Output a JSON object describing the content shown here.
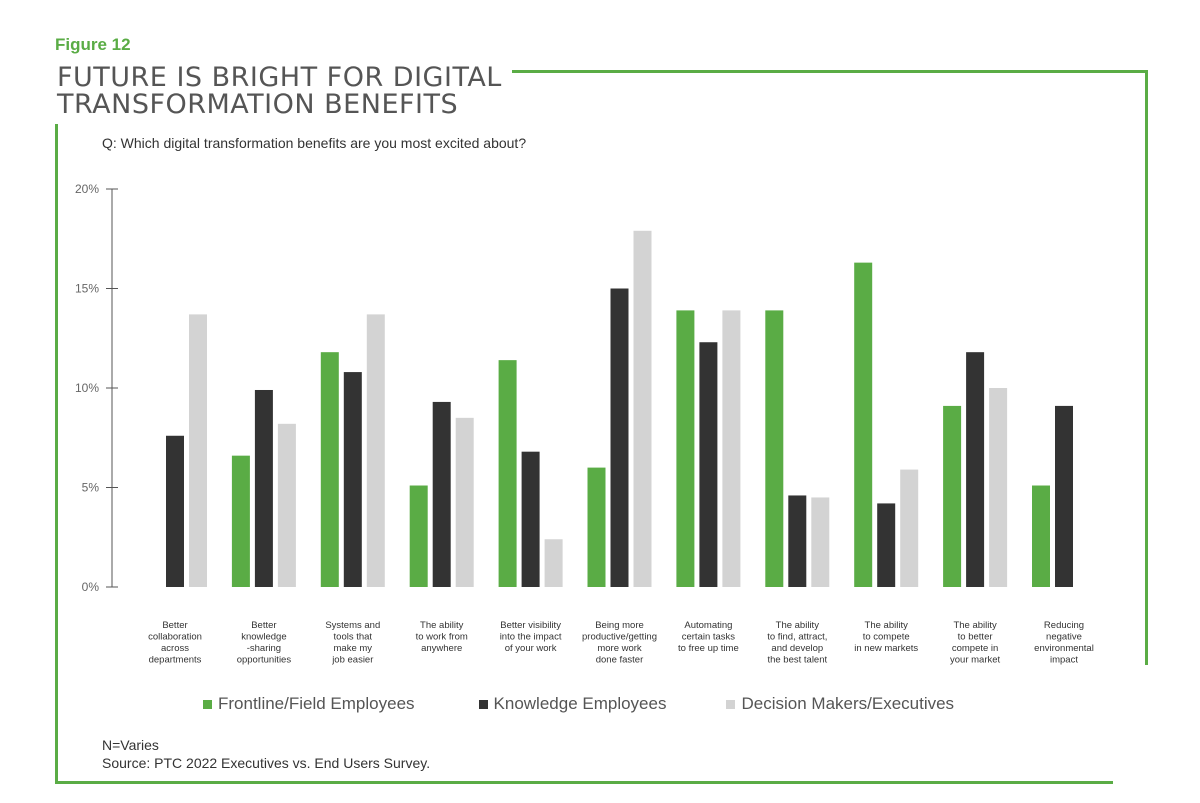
{
  "figure_label": "Figure 12",
  "title_lines": [
    "FUTURE IS BRIGHT FOR DIGITAL",
    "TRANSFORMATION BENEFITS"
  ],
  "question": "Q: Which digital transformation benefits are you most excited about?",
  "footnote": {
    "n": "N=Varies",
    "source": "Source: PTC 2022 Executives vs. End Users Survey."
  },
  "colors": {
    "accent": "#5aac45",
    "frontline": "#5aac45",
    "knowledge": "#333333",
    "decision": "#d3d3d3"
  },
  "chart_data": {
    "type": "bar",
    "title": "",
    "xlabel": "",
    "ylabel": "",
    "ylim": [
      0,
      20
    ],
    "yticks": [
      "0%",
      "5%",
      "10%",
      "15%",
      "20%"
    ],
    "grid": false,
    "legend_position": "bottom",
    "categories": [
      [
        "Better",
        "collaboration",
        "across",
        "departments"
      ],
      [
        "Better",
        "knowledge",
        "-sharing",
        "opportunities"
      ],
      [
        "Systems and",
        "tools that",
        "make my",
        "job easier"
      ],
      [
        "The ability",
        "to work from",
        "anywhere"
      ],
      [
        "Better visibility",
        "into the impact",
        "of your work"
      ],
      [
        "Being more",
        "productive/getting",
        "more work",
        "done faster"
      ],
      [
        "Automating",
        "certain tasks",
        "to free up time"
      ],
      [
        "The ability",
        "to find, attract,",
        "and develop",
        "the best talent"
      ],
      [
        "The ability",
        "to compete",
        "in new markets"
      ],
      [
        "The ability",
        "to better",
        "compete in",
        "your market"
      ],
      [
        "Reducing",
        "negative",
        "environmental",
        "impact"
      ]
    ],
    "series": [
      {
        "name": "Frontline/Field Employees",
        "values": [
          null,
          6.6,
          11.8,
          5.1,
          11.4,
          6.0,
          13.9,
          13.9,
          16.3,
          9.1,
          5.1
        ]
      },
      {
        "name": "Knowledge Employees",
        "values": [
          7.6,
          9.9,
          10.8,
          9.3,
          6.8,
          15.0,
          12.3,
          4.6,
          4.2,
          11.8,
          9.1
        ]
      },
      {
        "name": "Decision Makers/Executives",
        "values": [
          13.7,
          8.2,
          13.7,
          8.5,
          2.4,
          17.9,
          13.9,
          4.5,
          5.9,
          10.0,
          null
        ]
      }
    ]
  }
}
